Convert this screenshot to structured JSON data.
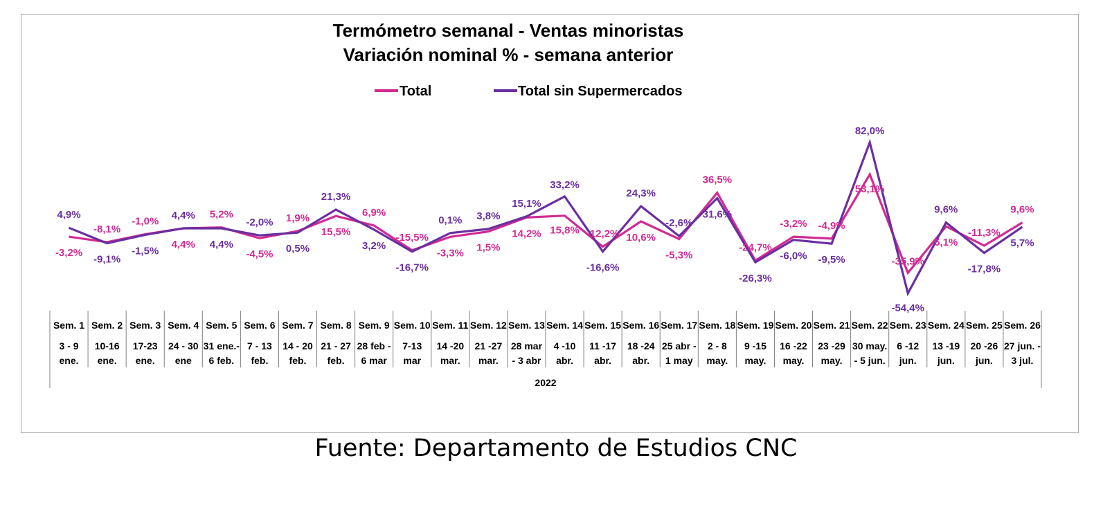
{
  "source_note": "Fuente: Departamento de Estudios CNC",
  "colors": {
    "total": "#d12b93",
    "sin_super": "#6a2fa0",
    "axis": "#7f7f7f"
  },
  "chart_data": {
    "type": "line",
    "title": [
      "Termómetro semanal - Ventas minoristas",
      "Variación nominal % - semana anterior"
    ],
    "year_label": "2022",
    "categories": [
      [
        "Sem. 1",
        "3 - 9",
        "ene."
      ],
      [
        "Sem. 2",
        "10-16",
        "ene."
      ],
      [
        "Sem. 3",
        "17-23",
        "ene."
      ],
      [
        "Sem. 4",
        "24 - 30",
        "ene"
      ],
      [
        "Sem. 5",
        "31 ene.-",
        "6 feb."
      ],
      [
        "Sem. 6",
        "7 - 13",
        "feb."
      ],
      [
        "Sem. 7",
        "14 - 20",
        "feb."
      ],
      [
        "Sem. 8",
        "21 - 27",
        "feb."
      ],
      [
        "Sem. 9",
        "28 feb -",
        "6 mar"
      ],
      [
        "Sem. 10",
        "7-13",
        "mar"
      ],
      [
        "Sem. 11",
        "14 -20",
        "mar."
      ],
      [
        "Sem. 12",
        "21 -27",
        "mar."
      ],
      [
        "Sem. 13",
        "28 mar",
        "- 3 abr"
      ],
      [
        "Sem. 14",
        "4 -10",
        "abr."
      ],
      [
        "Sem. 15",
        "11 -17",
        "abr."
      ],
      [
        "Sem. 16",
        "18 -24",
        "abr."
      ],
      [
        "Sem. 17",
        "25 abr -",
        "1 may"
      ],
      [
        "Sem. 18",
        "2 - 8",
        "may."
      ],
      [
        "Sem. 19",
        "9 -15",
        "may."
      ],
      [
        "Sem. 20",
        "16 -22",
        "may."
      ],
      [
        "Sem. 21",
        "23 -29",
        "may."
      ],
      [
        "Sem. 22",
        "30 may.",
        "- 5 jun."
      ],
      [
        "Sem. 23",
        "6 -12",
        "jun."
      ],
      [
        "Sem. 24",
        "13 -19",
        "jun."
      ],
      [
        "Sem. 25",
        "20 -26",
        "jun."
      ],
      [
        "Sem. 26",
        "27 jun. -",
        "3 jul."
      ]
    ],
    "series": [
      {
        "name": "Total",
        "values": [
          -3.2,
          -8.1,
          -1.0,
          4.4,
          5.2,
          -4.5,
          1.9,
          15.5,
          6.9,
          -15.5,
          -3.3,
          1.5,
          14.2,
          15.8,
          -12.2,
          10.6,
          -5.3,
          36.5,
          -24.7,
          -3.2,
          -4.9,
          53.1,
          -35.9,
          6.1,
          -11.3,
          9.6
        ],
        "labels": [
          "-3,2%",
          "-8,1%",
          "-1,0%",
          "4,4%",
          "5,2%",
          "-4,5%",
          "1,9%",
          "15,5%",
          "6,9%",
          "-15,5%",
          "-3,3%",
          "1,5%",
          "14,2%",
          "15,8%",
          "-12,2%",
          "10,6%",
          "-5,3%",
          "36,5%",
          "-24,7%",
          "-3,2%",
          "-4,9%",
          "53,1%",
          "-35,9%",
          "6,1%",
          "-11,3%",
          "9,6%"
        ]
      },
      {
        "name": "Total sin Supermercados",
        "values": [
          4.9,
          -9.1,
          -1.5,
          4.4,
          4.4,
          -2.0,
          0.5,
          21.3,
          3.2,
          -16.7,
          0.1,
          3.8,
          15.1,
          33.2,
          -16.6,
          24.3,
          -2.6,
          31.6,
          -26.3,
          -6.0,
          -9.5,
          82.0,
          -54.4,
          9.6,
          -17.8,
          5.7
        ],
        "labels": [
          "4,9%",
          "-9,1%",
          "-1,5%",
          "4,4%",
          "4,4%",
          "-2,0%",
          "0,5%",
          "21,3%",
          "3,2%",
          "-16,7%",
          "0,1%",
          "3,8%",
          "15,1%",
          "33,2%",
          "-16,6%",
          "24,3%",
          "-2,6%",
          "31,6%",
          "-26,3%",
          "-6,0%",
          "-9,5%",
          "82,0%",
          "-54,4%",
          "9,6%",
          "-17,8%",
          "5,7%"
        ]
      }
    ],
    "ylim": [
      -60,
      90
    ],
    "legend": "top"
  }
}
